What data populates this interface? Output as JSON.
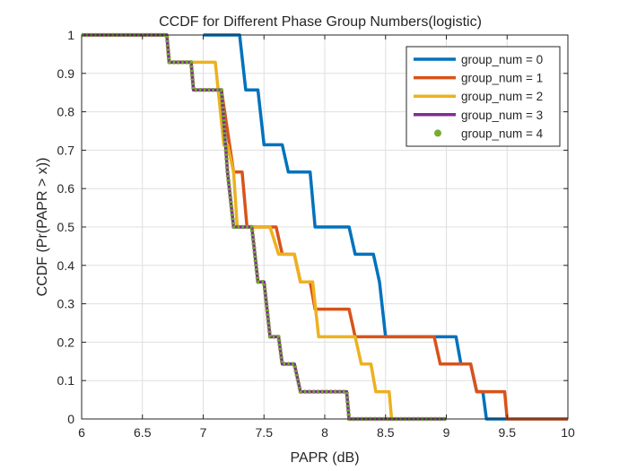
{
  "chart_data": {
    "type": "line",
    "title": "CCDF for Different Phase Group Numbers(logistic)",
    "xlabel": "PAPR (dB)",
    "ylabel": "CCDF (Pr(PAPR > x))",
    "xlim": [
      6,
      10
    ],
    "ylim": [
      0,
      1
    ],
    "xticks": [
      6,
      6.5,
      7,
      7.5,
      8,
      8.5,
      9,
      9.5,
      10
    ],
    "xtick_labels": [
      "6",
      "6.5",
      "7",
      "7.5",
      "8",
      "8.5",
      "9",
      "9.5",
      "10"
    ],
    "yticks": [
      0,
      0.1,
      0.2,
      0.3,
      0.4,
      0.5,
      0.6,
      0.7,
      0.8,
      0.9,
      1
    ],
    "ytick_labels": [
      "0",
      "0.1",
      "0.2",
      "0.3",
      "0.4",
      "0.5",
      "0.6",
      "0.7",
      "0.8",
      "0.9",
      "1"
    ],
    "grid": true,
    "legend_position": "top-right",
    "series": [
      {
        "name": "group_num = 0",
        "color": "#0072BD",
        "style": "line",
        "points": [
          [
            7.0,
            1.0
          ],
          [
            7.3,
            1.0
          ],
          [
            7.35,
            0.857
          ],
          [
            7.45,
            0.857
          ],
          [
            7.5,
            0.714
          ],
          [
            7.65,
            0.714
          ],
          [
            7.7,
            0.643
          ],
          [
            7.88,
            0.643
          ],
          [
            7.92,
            0.5
          ],
          [
            8.2,
            0.5
          ],
          [
            8.25,
            0.429
          ],
          [
            8.4,
            0.429
          ],
          [
            8.45,
            0.357
          ],
          [
            8.5,
            0.214
          ],
          [
            9.08,
            0.214
          ],
          [
            9.12,
            0.143
          ],
          [
            9.2,
            0.143
          ],
          [
            9.25,
            0.071
          ],
          [
            9.3,
            0.071
          ],
          [
            9.33,
            0.0
          ],
          [
            10.0,
            0.0
          ]
        ]
      },
      {
        "name": "group_num = 1",
        "color": "#D95319",
        "style": "line",
        "points": [
          [
            6.0,
            1.0
          ],
          [
            6.7,
            1.0
          ],
          [
            6.72,
            0.929
          ],
          [
            6.9,
            0.929
          ],
          [
            6.92,
            0.857
          ],
          [
            7.15,
            0.857
          ],
          [
            7.25,
            0.643
          ],
          [
            7.32,
            0.643
          ],
          [
            7.36,
            0.5
          ],
          [
            7.6,
            0.5
          ],
          [
            7.65,
            0.429
          ],
          [
            7.75,
            0.429
          ],
          [
            7.8,
            0.357
          ],
          [
            7.88,
            0.357
          ],
          [
            7.92,
            0.286
          ],
          [
            8.2,
            0.286
          ],
          [
            8.25,
            0.214
          ],
          [
            8.9,
            0.214
          ],
          [
            8.95,
            0.143
          ],
          [
            9.2,
            0.143
          ],
          [
            9.25,
            0.071
          ],
          [
            9.48,
            0.071
          ],
          [
            9.5,
            0.0
          ],
          [
            10.0,
            0.0
          ]
        ]
      },
      {
        "name": "group_num = 2",
        "color": "#EDB120",
        "style": "line",
        "points": [
          [
            6.0,
            1.0
          ],
          [
            6.7,
            1.0
          ],
          [
            6.72,
            0.929
          ],
          [
            7.1,
            0.929
          ],
          [
            7.17,
            0.714
          ],
          [
            7.2,
            0.714
          ],
          [
            7.25,
            0.643
          ],
          [
            7.28,
            0.5
          ],
          [
            7.55,
            0.5
          ],
          [
            7.62,
            0.429
          ],
          [
            7.75,
            0.429
          ],
          [
            7.8,
            0.357
          ],
          [
            7.9,
            0.357
          ],
          [
            7.95,
            0.214
          ],
          [
            8.25,
            0.214
          ],
          [
            8.3,
            0.143
          ],
          [
            8.38,
            0.143
          ],
          [
            8.42,
            0.071
          ],
          [
            8.53,
            0.071
          ],
          [
            8.55,
            0.0
          ],
          [
            8.6,
            0.0
          ]
        ]
      },
      {
        "name": "group_num = 3",
        "color": "#7E2F8E",
        "style": "line",
        "points": [
          [
            6.0,
            1.0
          ],
          [
            6.7,
            1.0
          ],
          [
            6.72,
            0.929
          ],
          [
            6.9,
            0.929
          ],
          [
            6.92,
            0.857
          ],
          [
            7.15,
            0.857
          ],
          [
            7.2,
            0.643
          ],
          [
            7.25,
            0.5
          ],
          [
            7.4,
            0.5
          ],
          [
            7.45,
            0.357
          ],
          [
            7.5,
            0.357
          ],
          [
            7.55,
            0.214
          ],
          [
            7.62,
            0.214
          ],
          [
            7.65,
            0.143
          ],
          [
            7.75,
            0.143
          ],
          [
            7.8,
            0.071
          ],
          [
            8.18,
            0.071
          ],
          [
            8.2,
            0.0
          ],
          [
            9.0,
            0.0
          ]
        ]
      },
      {
        "name": "group_num = 4",
        "color": "#77AC30",
        "style": "dots",
        "points": [
          [
            6.0,
            1.0
          ],
          [
            6.7,
            1.0
          ],
          [
            6.72,
            0.929
          ],
          [
            6.9,
            0.929
          ],
          [
            6.92,
            0.857
          ],
          [
            7.15,
            0.857
          ],
          [
            7.2,
            0.643
          ],
          [
            7.25,
            0.5
          ],
          [
            7.4,
            0.5
          ],
          [
            7.45,
            0.357
          ],
          [
            7.5,
            0.357
          ],
          [
            7.55,
            0.214
          ],
          [
            7.62,
            0.214
          ],
          [
            7.65,
            0.143
          ],
          [
            7.75,
            0.143
          ],
          [
            7.8,
            0.071
          ],
          [
            8.18,
            0.071
          ],
          [
            8.2,
            0.0
          ],
          [
            9.0,
            0.0
          ]
        ]
      }
    ]
  }
}
